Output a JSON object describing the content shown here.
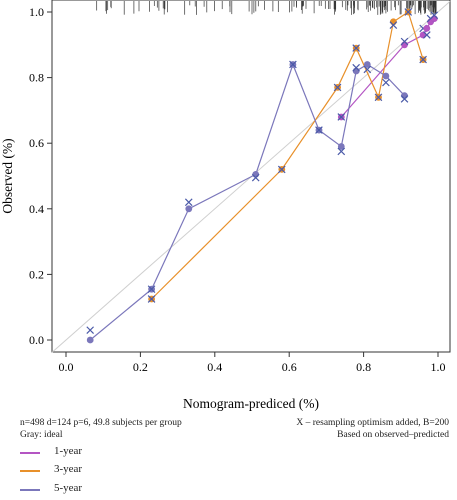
{
  "chart_data": {
    "type": "line",
    "xlabel": "Nomogram-prediced (%)",
    "ylabel": "Observed (%)",
    "xlim": [
      -0.05,
      1.02
    ],
    "ylim": [
      -0.05,
      1.02
    ],
    "x_ticks": [
      "0.0",
      "0.2",
      "0.4",
      "0.6",
      "0.8",
      "1.0"
    ],
    "y_ticks": [
      "0.0",
      "0.2",
      "0.4",
      "0.6",
      "0.8",
      "1.0"
    ],
    "ideal_line": "Gray: ideal",
    "series": [
      {
        "name": "1-year",
        "color": "#b455c3",
        "x": [
          0.74,
          0.91,
          0.96,
          0.97,
          0.98,
          0.99
        ],
        "observed": [
          0.68,
          0.9,
          0.93,
          0.95,
          0.97,
          0.98
        ],
        "corrected": [
          0.68,
          0.91,
          0.95,
          0.93,
          0.98,
          0.99
        ]
      },
      {
        "name": "3-year",
        "color": "#e8902a",
        "x": [
          0.23,
          0.58,
          0.73,
          0.78,
          0.84,
          0.88,
          0.92,
          0.96
        ],
        "observed": [
          0.125,
          0.52,
          0.77,
          0.89,
          0.74,
          0.97,
          1.0,
          0.855
        ],
        "corrected": [
          0.125,
          0.52,
          0.77,
          0.89,
          0.74,
          0.96,
          1.0,
          0.855
        ]
      },
      {
        "name": "5-year",
        "color": "#7b77bb",
        "x": [
          0.065,
          0.23,
          0.33,
          0.51,
          0.61,
          0.68,
          0.74,
          0.78,
          0.81,
          0.86,
          0.91
        ],
        "observed": [
          0.0,
          0.155,
          0.4,
          0.505,
          0.84,
          0.64,
          0.59,
          0.82,
          0.84,
          0.805,
          0.745
        ],
        "corrected": [
          0.03,
          0.155,
          0.42,
          0.495,
          0.84,
          0.64,
          0.575,
          0.83,
          0.825,
          0.785,
          0.735
        ]
      }
    ],
    "rug_top": true
  },
  "notes": {
    "left_1": "n=498 d=124 p=6, 49.8 subjects per group",
    "left_2": "Gray: ideal",
    "right_1": "X – resampling optimism added, B=200",
    "right_2": "Based on observed–predicted"
  },
  "legend": [
    {
      "label": "1-year",
      "color": "#b455c3"
    },
    {
      "label": "3-year",
      "color": "#e8902a"
    },
    {
      "label": "5-year",
      "color": "#7b77bb"
    }
  ]
}
